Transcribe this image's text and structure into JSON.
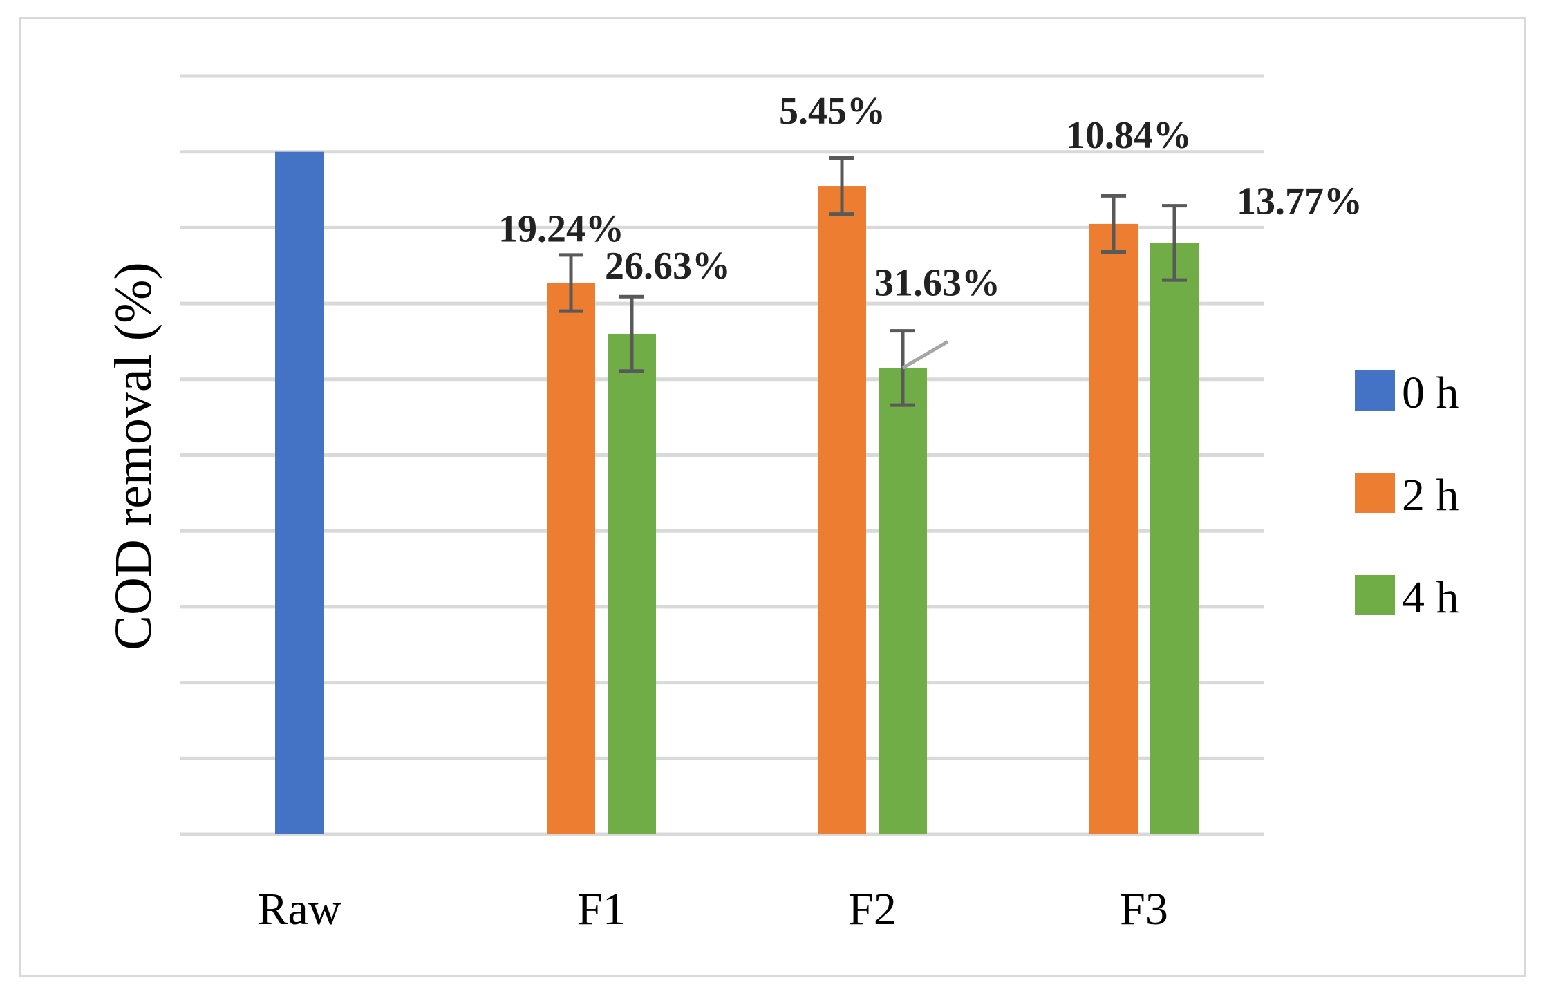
{
  "chart_data": {
    "type": "bar",
    "title": "",
    "xlabel": "",
    "ylabel": "COD removal (%)",
    "ylim": [
      0,
      10
    ],
    "grid": true,
    "legend_position": "right",
    "categories": [
      "Raw",
      "F1",
      "F2",
      "F3"
    ],
    "series": [
      {
        "name": "0 h",
        "color": "#4472C4",
        "values": [
          9.0,
          null,
          null,
          null
        ],
        "errors": [
          null,
          null,
          null,
          null
        ],
        "labels": [
          null,
          null,
          null,
          null
        ]
      },
      {
        "name": "2 h",
        "color": "#ED7D31",
        "values": [
          null,
          7.27,
          8.55,
          8.05
        ],
        "errors": [
          null,
          0.37,
          0.37,
          0.37
        ],
        "labels": [
          null,
          "19.24%",
          "5.45%",
          "10.84%"
        ]
      },
      {
        "name": "4 h",
        "color": "#70AD47",
        "values": [
          null,
          6.6,
          6.15,
          7.8
        ],
        "errors": [
          null,
          0.49,
          0.49,
          0.49
        ],
        "labels": [
          null,
          "26.63%",
          "31.63%",
          "13.77%"
        ]
      }
    ]
  }
}
